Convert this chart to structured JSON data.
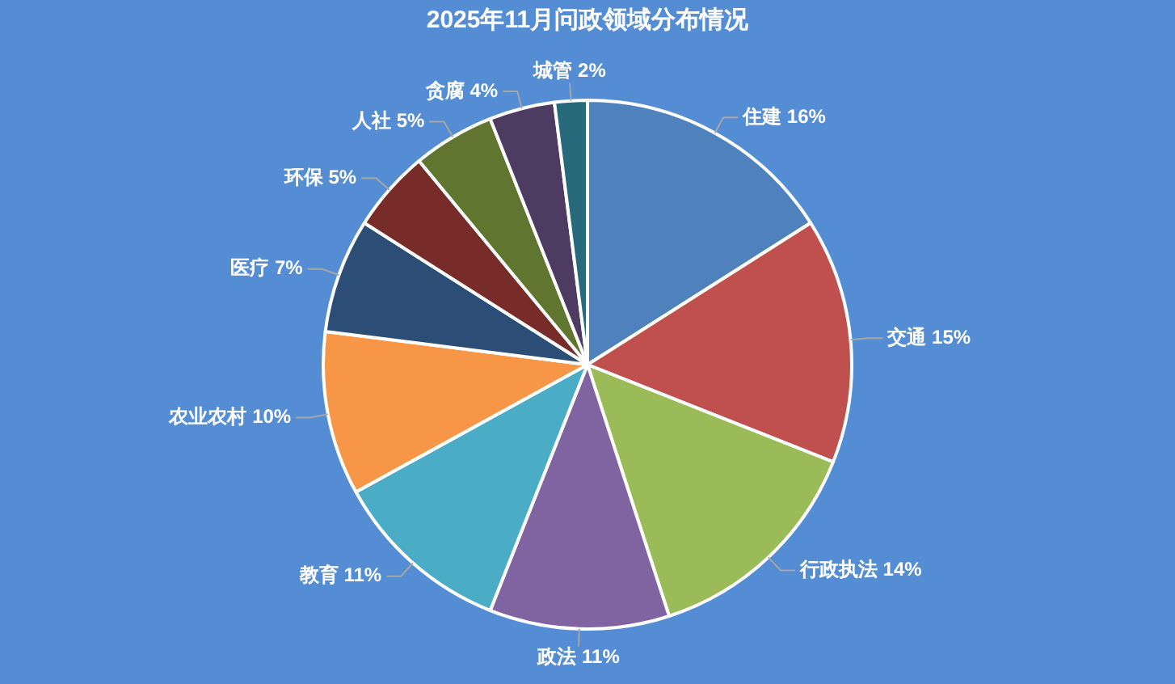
{
  "chart_data": {
    "type": "pie",
    "title": "2025年11月问政领域分布情况",
    "categories": [
      "住建",
      "交通",
      "行政执法",
      "政法",
      "教育",
      "农业农村",
      "医疗",
      "环保",
      "人社",
      "贪腐",
      "城管"
    ],
    "values": [
      16,
      15,
      14,
      11,
      11,
      10,
      7,
      5,
      5,
      4,
      2
    ],
    "value_labels": [
      "16%",
      "15%",
      "14%",
      "11%",
      "11%",
      "10%",
      "7%",
      "5%",
      "5%",
      "4%",
      "2%"
    ],
    "colors": [
      "#4f81bd",
      "#c0504d",
      "#9bbb59",
      "#8064a2",
      "#4bacc6",
      "#f79646",
      "#2c4d75",
      "#772c2a",
      "#5f7530",
      "#4d3b62",
      "#276a7c"
    ]
  }
}
